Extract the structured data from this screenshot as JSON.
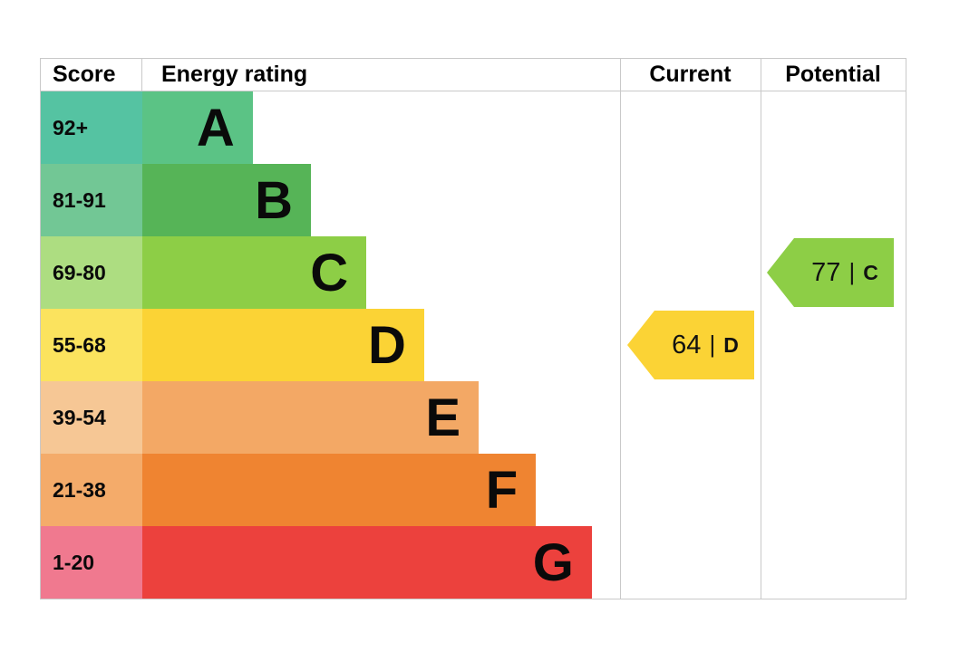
{
  "chart_data": {
    "type": "bar",
    "headers": {
      "score": "Score",
      "rating": "Energy rating",
      "current": "Current",
      "potential": "Potential"
    },
    "bands": [
      {
        "letter": "A",
        "score_range": "92+",
        "bar_color": "#5bc385",
        "score_color": "#55c3a2",
        "bar_len": 0.231
      },
      {
        "letter": "B",
        "score_range": "81-91",
        "bar_color": "#56b457",
        "score_color": "#72c795",
        "bar_len": 0.353
      },
      {
        "letter": "C",
        "score_range": "69-80",
        "bar_color": "#8dce46",
        "score_color": "#addd81",
        "bar_len": 0.469
      },
      {
        "letter": "D",
        "score_range": "55-68",
        "bar_color": "#fbd335",
        "score_color": "#fbe35e",
        "bar_len": 0.59
      },
      {
        "letter": "E",
        "score_range": "39-54",
        "bar_color": "#f3a865",
        "score_color": "#f6c795",
        "bar_len": 0.704
      },
      {
        "letter": "F",
        "score_range": "21-38",
        "bar_color": "#ef8431",
        "score_color": "#f4ab6a",
        "bar_len": 0.824
      },
      {
        "letter": "G",
        "score_range": "1-20",
        "bar_color": "#ec413d",
        "score_color": "#f0798f",
        "bar_len": 0.941
      }
    ],
    "current": {
      "value": "64",
      "separator": "|",
      "band": "D",
      "color": "#fbd335"
    },
    "potential": {
      "value": "77",
      "separator": "|",
      "band": "C",
      "color": "#8dce46"
    }
  },
  "colors": {
    "border": "#c9c9c9",
    "background": "#ffffff",
    "text": "#000000"
  }
}
